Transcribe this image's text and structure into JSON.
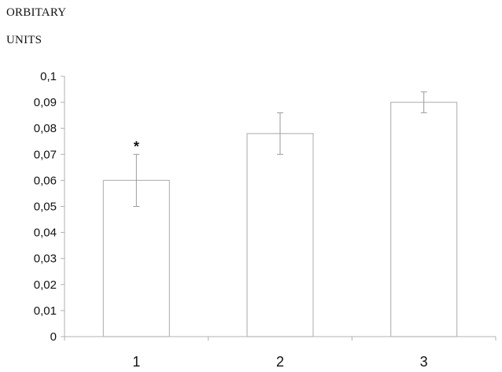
{
  "chart_data": {
    "type": "bar",
    "ylabel_lines": [
      "ORBITARY",
      "UNITS"
    ],
    "categories": [
      "1",
      "2",
      "3"
    ],
    "values": [
      0.06,
      0.078,
      0.09
    ],
    "errors": [
      0.01,
      0.008,
      0.004
    ],
    "annotations": [
      "*",
      "",
      ""
    ],
    "ylim": [
      0,
      0.1
    ],
    "yticks": [
      0,
      0.01,
      0.02,
      0.03,
      0.04,
      0.05,
      0.06,
      0.07,
      0.08,
      0.09,
      0.1
    ],
    "ytick_labels": [
      "0",
      "0,01",
      "0,02",
      "0,03",
      "0,04",
      "0,05",
      "0,06",
      "0,07",
      "0,08",
      "0,09",
      "0,1"
    ],
    "grid": false,
    "colors": {
      "bar_fill": "#ffffff",
      "bar_stroke": "#b8b8b8",
      "axis": "#b0b0b0",
      "error_bar": "#9a9a9a"
    }
  }
}
